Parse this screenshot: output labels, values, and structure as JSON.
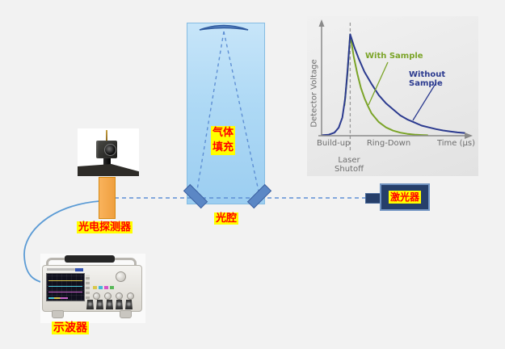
{
  "diagram": {
    "labels": {
      "photodetector": "光电探测器",
      "cavity": "光腔",
      "gas_fill": "气体\n填充",
      "laser": "激光器",
      "oscilloscope": "示波器"
    },
    "colors": {
      "page_bg": "#f2f2f2",
      "label_bg": "#ffff00",
      "label_text": "#ff0000",
      "beam_dash": "#5e8fd4",
      "cable": "#5b9bd5",
      "cavity_fill_top": "#c7e5f9",
      "cavity_fill_bottom": "#9ccef1",
      "cavity_border": "#85bce2",
      "mirror_fill": "#5b87c5",
      "mirror_border": "#3a5fa0",
      "laser_body": "#263f6a",
      "laser_border": "#7294c2",
      "detector_block": "#f6a94f",
      "chart_bg": "#ebebeb"
    }
  },
  "chart_data": {
    "type": "line",
    "title": "",
    "xlabel": "Time (μs)",
    "ylabel": "Detector Voltage",
    "xlim": [
      0,
      10
    ],
    "ylim": [
      0,
      1.1
    ],
    "grid": false,
    "legend_position": "inline annotations with leader lines",
    "laser_shutoff_x": 2,
    "axis_color": "#8a8a8a",
    "text_color": "#6e6e6e",
    "phase_labels": {
      "build_up": "Build-up",
      "ring_down": "Ring-Down",
      "shutoff": "Laser\nShutoff"
    },
    "series": [
      {
        "name": "Without Sample",
        "color": "#2b3a8f",
        "x": [
          0,
          0.5,
          0.9,
          1.2,
          1.45,
          1.65,
          1.82,
          2.0,
          2.3,
          2.6,
          3.0,
          3.5,
          4.0,
          4.5,
          5.0,
          5.5,
          6.0,
          6.5,
          7.0,
          7.5,
          8.0,
          8.5,
          9.0,
          9.5,
          10.0
        ],
        "y": [
          0.005,
          0.01,
          0.03,
          0.08,
          0.18,
          0.37,
          0.65,
          1.0,
          0.87,
          0.76,
          0.63,
          0.51,
          0.4,
          0.32,
          0.26,
          0.2,
          0.16,
          0.13,
          0.1,
          0.082,
          0.065,
          0.052,
          0.042,
          0.033,
          0.027
        ]
      },
      {
        "name": "With Sample",
        "color": "#7ba428",
        "x": [
          1.6,
          1.8,
          2.0,
          2.25,
          2.5,
          2.75,
          3.0,
          3.25,
          3.5,
          4.0,
          4.5,
          5.0,
          5.5,
          6.0,
          6.5,
          7.0,
          7.4
        ],
        "y": [
          0.3,
          0.6,
          1.0,
          0.78,
          0.61,
          0.47,
          0.37,
          0.29,
          0.22,
          0.135,
          0.082,
          0.05,
          0.03,
          0.018,
          0.011,
          0.007,
          0.005
        ]
      }
    ]
  }
}
